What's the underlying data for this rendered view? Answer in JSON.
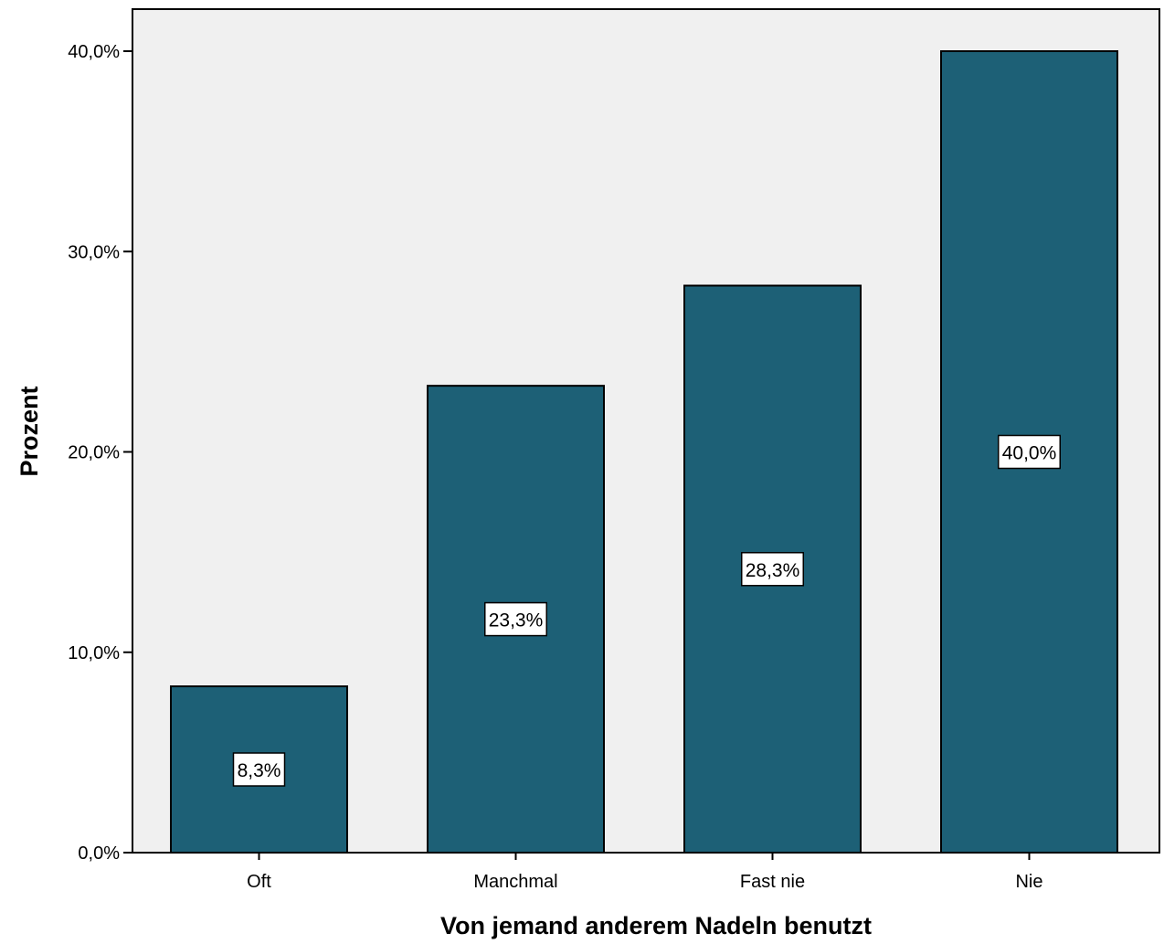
{
  "chart_data": {
    "type": "bar",
    "categories": [
      "Oft",
      "Manchmal",
      "Fast nie",
      "Nie"
    ],
    "values": [
      8.3,
      23.3,
      28.3,
      40.0
    ],
    "data_labels": [
      "8,3%",
      "23,3%",
      "28,3%",
      "40,0%"
    ],
    "title": "",
    "xlabel": "Von jemand anderem Nadeln benutzt",
    "ylabel": "Prozent",
    "ylim": [
      0,
      40
    ],
    "yticks": [
      0,
      10,
      20,
      30,
      40
    ],
    "ytick_labels": [
      "0,0%",
      "10,0%",
      "20,0%",
      "30,0%",
      "40,0%"
    ],
    "grid": false,
    "legend": "none",
    "colors": {
      "bar_fill": "#1d6076",
      "plot_background": "#f0f0f0",
      "label_background": "#ffffff"
    }
  }
}
